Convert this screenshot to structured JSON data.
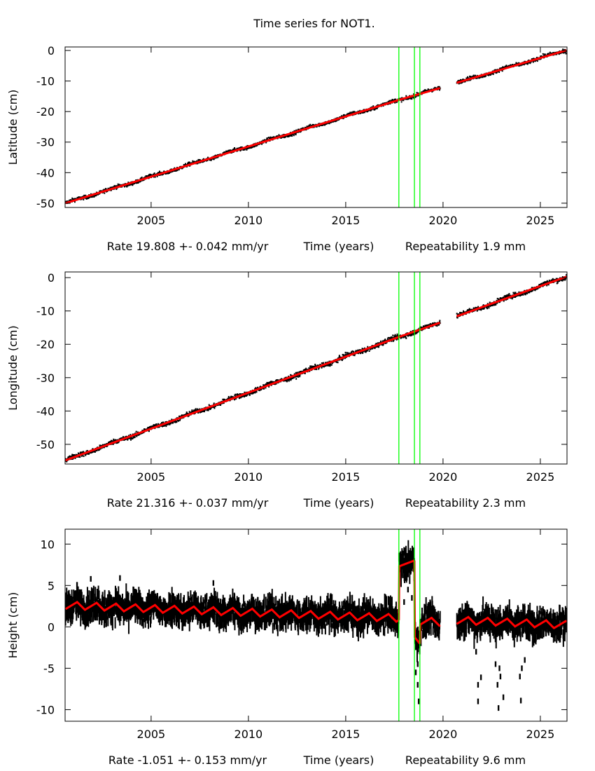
{
  "chart_data": {
    "type": "scatter",
    "title": "Time series for NOT1.",
    "xlim": [
      2000.58,
      2026.37
    ],
    "xticks": [
      2005,
      2010,
      2015,
      2020,
      2025
    ],
    "xlabel": "Time (years)",
    "colors": {
      "points": "#000000",
      "model": "#ff0000",
      "events": "#00ff00"
    },
    "event_lines": [
      2017.73,
      2018.53,
      2018.81
    ],
    "data_gap": [
      2019.85,
      2020.7
    ],
    "panels": [
      {
        "ylabel": "Latitude (cm)",
        "ylim": [
          -51.4,
          1.15
        ],
        "yticks": [
          0,
          -10,
          -20,
          -30,
          -40,
          -50
        ],
        "rate_label": "Rate 19.808 +- 0.042 mm/yr",
        "repeat_label": "Repeatability 1.9 mm",
        "scatter_cm": 0.3,
        "model": [
          [
            2000.6,
            -50.0
          ],
          [
            2017.73,
            -16.2
          ],
          [
            2019.85,
            -12.3
          ],
          [
            2020.7,
            -10.6
          ],
          [
            2026.35,
            0.1
          ]
        ],
        "seasonal_amp": 0.0,
        "outliers": []
      },
      {
        "ylabel": "Longitude (cm)",
        "ylim": [
          -55.9,
          1.7
        ],
        "yticks": [
          0,
          -10,
          -20,
          -30,
          -40,
          -50
        ],
        "rate_label": "Rate 21.316 +- 0.037 mm/yr",
        "repeat_label": "Repeatability 2.3 mm",
        "scatter_cm": 0.35,
        "model": [
          [
            2000.6,
            -54.8
          ],
          [
            2017.73,
            -17.8
          ],
          [
            2019.85,
            -13.5
          ],
          [
            2020.7,
            -11.6
          ],
          [
            2026.35,
            0.3
          ]
        ],
        "seasonal_amp": 0.0,
        "outliers": []
      },
      {
        "ylabel": "Height (cm)",
        "ylim": [
          -11.4,
          11.8
        ],
        "yticks": [
          10,
          5,
          0,
          -5,
          -10
        ],
        "rate_label": "Rate -1.051 +- 0.153 mm/yr",
        "repeat_label": "Repeatability 9.6 mm",
        "scatter_cm": 0.8,
        "segments": [
          {
            "start": 2000.6,
            "end": 2017.73,
            "offset": 2.6,
            "trend": -0.09,
            "amp": 0.45
          },
          {
            "start": 2017.73,
            "end": 2018.53,
            "offset": 7.3,
            "trend": 0.9,
            "amp": 0.0
          },
          {
            "start": 2018.53,
            "end": 2018.81,
            "offset": -1.2,
            "trend": -3.0,
            "amp": 0.0
          },
          {
            "start": 2018.81,
            "end": 2019.85,
            "offset": 0.7,
            "trend": -0.1,
            "amp": 0.45
          },
          {
            "start": 2020.7,
            "end": 2026.35,
            "offset": 0.8,
            "trend": -0.1,
            "amp": 0.45
          }
        ],
        "outliers": [
          [
            2003.4,
            5.9
          ],
          [
            2001.9,
            5.8
          ],
          [
            2008.2,
            5.3
          ],
          [
            2018.0,
            3.0
          ],
          [
            2018.2,
            4.5
          ],
          [
            2018.4,
            3.5
          ],
          [
            2018.6,
            -5.5
          ],
          [
            2018.7,
            -7.0
          ],
          [
            2018.75,
            -9.0
          ],
          [
            2018.7,
            -4.5
          ],
          [
            2021.8,
            -9.0
          ],
          [
            2021.8,
            -7.0
          ],
          [
            2021.95,
            -6.1
          ],
          [
            2022.7,
            -4.5
          ],
          [
            2022.8,
            -7.0
          ],
          [
            2022.85,
            -9.8
          ],
          [
            2022.95,
            -6.0
          ],
          [
            2022.9,
            -5.0
          ],
          [
            2024.0,
            -8.9
          ],
          [
            2023.95,
            -6.0
          ],
          [
            2024.05,
            -5.0
          ],
          [
            2024.2,
            -4.0
          ],
          [
            2021.7,
            -3.0
          ],
          [
            2023.1,
            -8.5
          ]
        ]
      }
    ]
  }
}
